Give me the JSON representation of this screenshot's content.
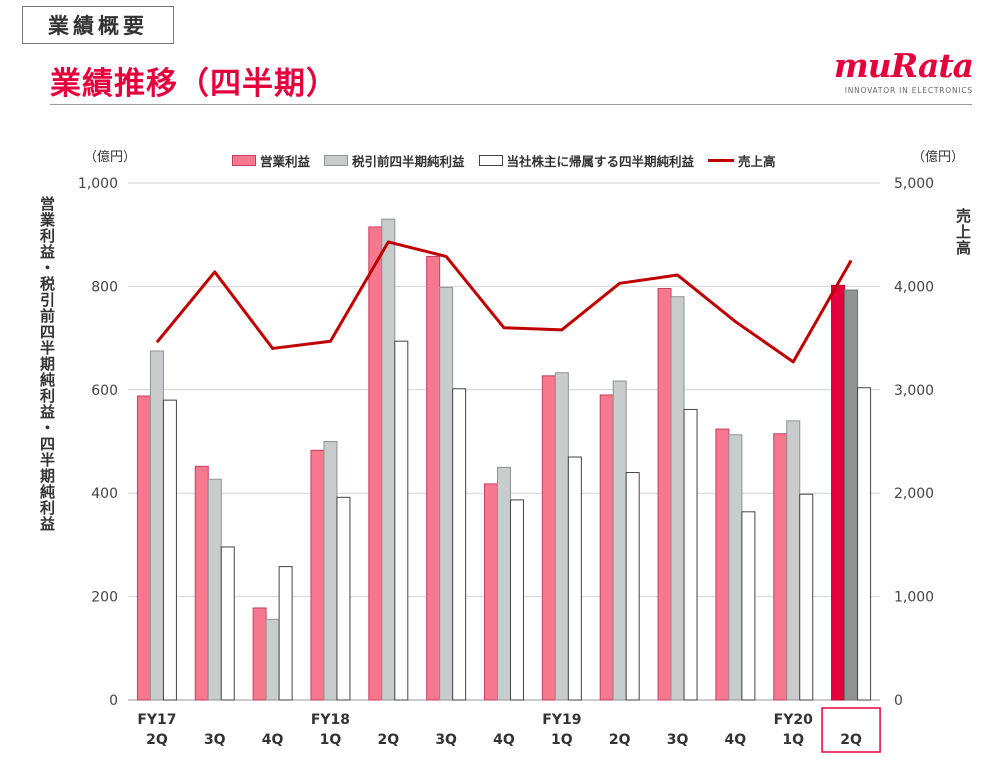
{
  "header": {
    "section_label": "業績概要",
    "page_title": "業績推移（四半期）",
    "brand_name": "muRata",
    "brand_tagline": "INNOVATOR IN ELECTRONICS"
  },
  "colors": {
    "accent": "#e5003d",
    "operating_income": "#f5788e",
    "pretax_income": "#c9cccc",
    "net_income": "#ffffff",
    "net_sales_line": "#c00000",
    "highlight_operating": "#e5003d",
    "highlight_pretax": "#8f9393"
  },
  "chart_data": {
    "type": "bar",
    "left_axis": {
      "unit": "（億円）",
      "label": "営業利益・税引前四半期純利益・四半期純利益",
      "range": [
        0,
        1000
      ],
      "ticks": [
        "0",
        "200",
        "400",
        "600",
        "800",
        "1,000"
      ]
    },
    "right_axis": {
      "unit": "（億円）",
      "label": "売上高",
      "range": [
        0,
        5000
      ],
      "ticks": [
        "0",
        "1,000",
        "2,000",
        "3,000",
        "4,000",
        "5,000"
      ]
    },
    "categories": [
      {
        "fy": "FY17",
        "q": "2Q"
      },
      {
        "fy": "",
        "q": "3Q"
      },
      {
        "fy": "",
        "q": "4Q"
      },
      {
        "fy": "FY18",
        "q": "1Q"
      },
      {
        "fy": "",
        "q": "2Q"
      },
      {
        "fy": "",
        "q": "3Q"
      },
      {
        "fy": "",
        "q": "4Q"
      },
      {
        "fy": "FY19",
        "q": "1Q"
      },
      {
        "fy": "",
        "q": "2Q"
      },
      {
        "fy": "",
        "q": "3Q"
      },
      {
        "fy": "",
        "q": "4Q"
      },
      {
        "fy": "FY20",
        "q": "1Q"
      },
      {
        "fy": "",
        "q": "2Q"
      }
    ],
    "highlight_index": 12,
    "series": [
      {
        "name": "営業利益",
        "kind": "bar",
        "axis": "left",
        "values": [
          588,
          452,
          178,
          483,
          915,
          858,
          418,
          627,
          590,
          796,
          524,
          515,
          802
        ]
      },
      {
        "name": "税引前四半期純利益",
        "kind": "bar",
        "axis": "left",
        "values": [
          675,
          427,
          156,
          500,
          930,
          798,
          450,
          633,
          617,
          780,
          513,
          540,
          793
        ]
      },
      {
        "name": "当社株主に帰属する四半期純利益",
        "kind": "bar",
        "axis": "left",
        "values": [
          580,
          296,
          258,
          392,
          694,
          602,
          387,
          470,
          440,
          562,
          364,
          398,
          604
        ]
      },
      {
        "name": "売上高",
        "kind": "line",
        "axis": "right",
        "values": [
          3460,
          4140,
          3400,
          3470,
          4430,
          4290,
          3600,
          3580,
          4030,
          4110,
          3660,
          3270,
          4250
        ]
      }
    ],
    "grid": true,
    "legend_position": "top"
  }
}
